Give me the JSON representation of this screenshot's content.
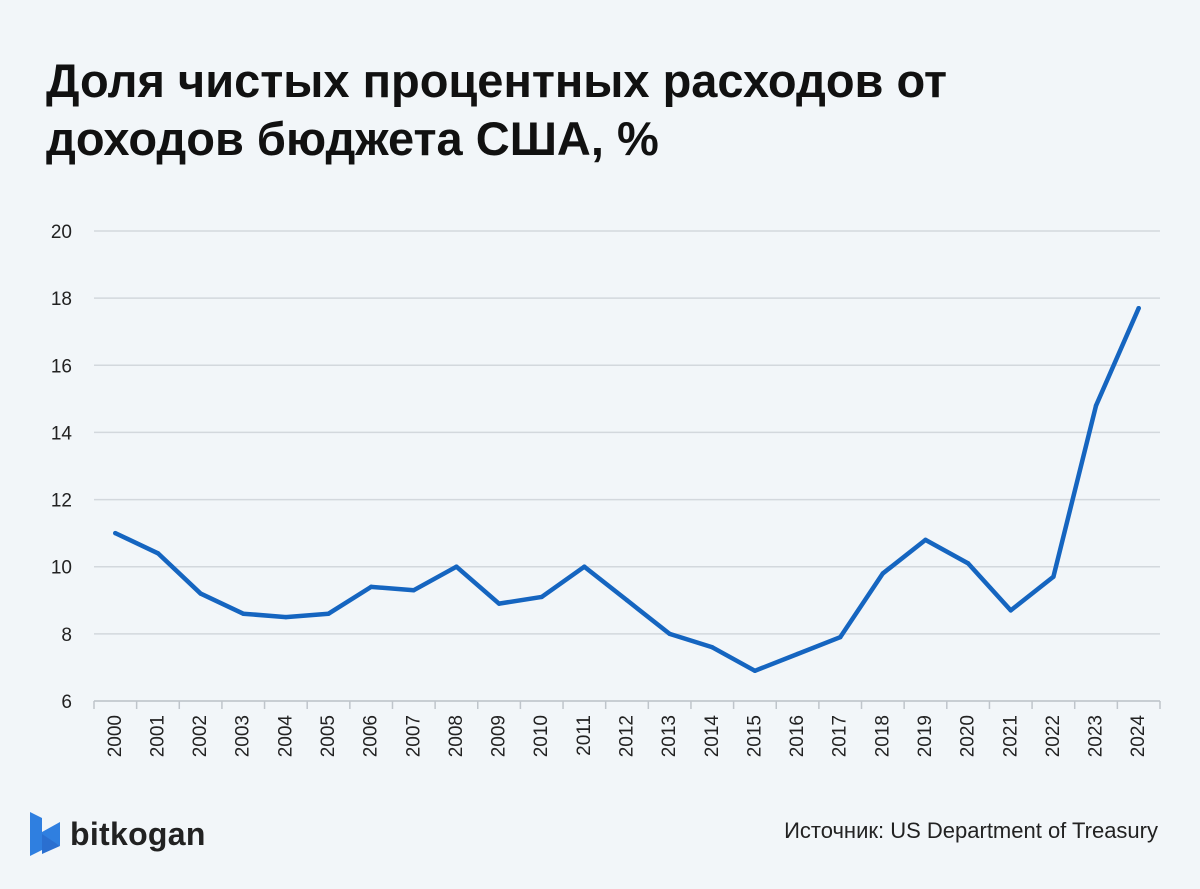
{
  "title_lines": [
    "Доля чистых процентных расходов от",
    "доходов бюджета США, %"
  ],
  "brand": {
    "name": "bitkogan",
    "icon": "bitkogan-logo-icon",
    "color": "#2f7fe0"
  },
  "source": "Источник: US Department of Treasury",
  "colors": {
    "line": "#1565c0",
    "grid": "#d3d8dd",
    "text": "#222222",
    "background": "#f2f6f9"
  },
  "chart_data": {
    "type": "line",
    "title": "Доля чистых процентных расходов от доходов бюджета США, %",
    "xlabel": "",
    "ylabel": "",
    "ylim": [
      6,
      20
    ],
    "yticks": [
      6,
      8,
      10,
      12,
      14,
      16,
      18,
      20
    ],
    "grid": true,
    "categories": [
      "2000",
      "2001",
      "2002",
      "2003",
      "2004",
      "2005",
      "2006",
      "2007",
      "2008",
      "2009",
      "2010",
      "2011",
      "2012",
      "2013",
      "2014",
      "2015",
      "2016",
      "2017",
      "2018",
      "2019",
      "2020",
      "2021",
      "2022",
      "2023",
      "2024"
    ],
    "series": [
      {
        "name": "Доля чистых процентных расходов",
        "values": [
          11.0,
          10.4,
          9.2,
          8.6,
          8.5,
          8.6,
          9.4,
          9.3,
          10.0,
          8.9,
          9.1,
          10.0,
          9.0,
          8.0,
          7.6,
          6.9,
          7.4,
          7.9,
          9.8,
          10.8,
          10.1,
          8.7,
          9.7,
          14.8,
          17.7
        ]
      }
    ]
  }
}
